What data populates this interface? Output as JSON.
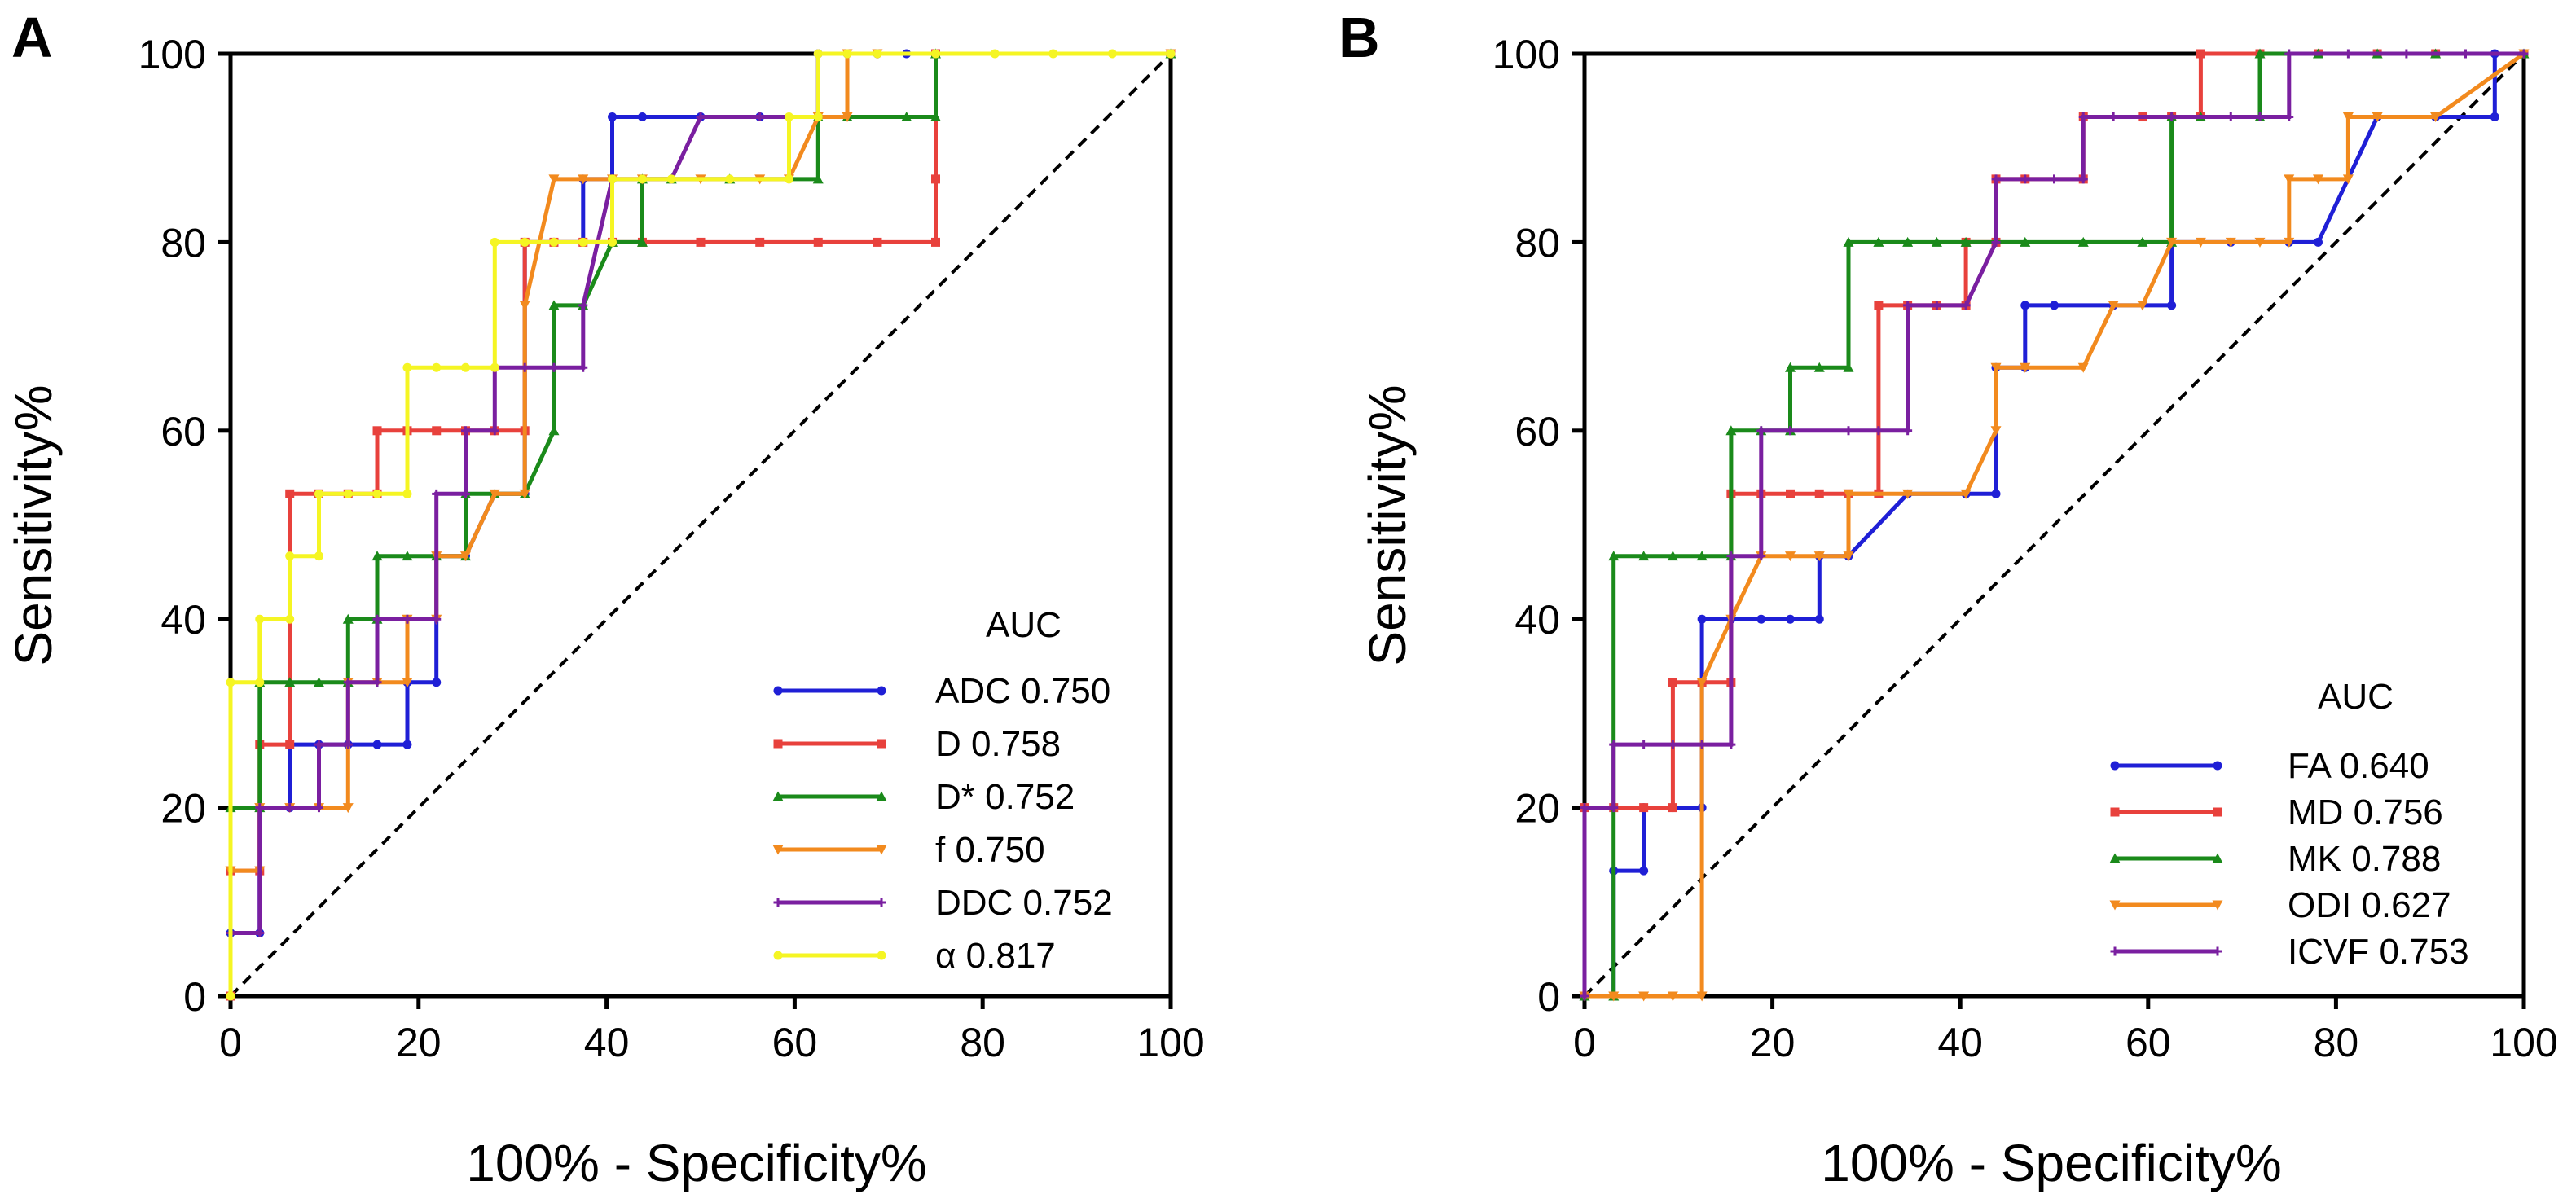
{
  "chart_data": [
    {
      "panel": "A",
      "type": "line",
      "xlabel": "100% - Specificity%",
      "ylabel": "Sensitivity%",
      "xlim": [
        0,
        100
      ],
      "ylim": [
        0,
        100
      ],
      "xticks": [
        0,
        20,
        40,
        60,
        80,
        100
      ],
      "yticks": [
        0,
        20,
        40,
        60,
        80,
        100
      ],
      "reference_line": "diagonal",
      "legend_title": "AUC",
      "legend_position": "bottom-right",
      "series": [
        {
          "name": "ADC",
          "auc": "0.750",
          "color": "#1f1fd6",
          "marker": "circle",
          "x": [
            0,
            0,
            3.1,
            3.1,
            6.3,
            6.3,
            9.4,
            12.5,
            15.6,
            18.8,
            18.8,
            21.9,
            21.9,
            25,
            28.1,
            31.3,
            31.3,
            34.4,
            37.5,
            37.5,
            40.6,
            40.6,
            43.8,
            50,
            56.3,
            62.5,
            62.5,
            65.6,
            68.8,
            71.9,
            75,
            75,
            100
          ],
          "y": [
            0,
            6.7,
            6.7,
            20,
            20,
            26.7,
            26.7,
            26.7,
            26.7,
            26.7,
            33.3,
            33.3,
            46.7,
            46.7,
            53.3,
            53.3,
            80,
            80,
            80,
            86.7,
            86.7,
            93.3,
            93.3,
            93.3,
            93.3,
            93.3,
            100,
            100,
            100,
            100,
            100,
            100,
            100
          ]
        },
        {
          "name": "D",
          "auc": "0.758",
          "color": "#e8413c",
          "marker": "square",
          "x": [
            0,
            0,
            3.1,
            3.1,
            6.3,
            6.3,
            9.4,
            12.5,
            15.6,
            15.6,
            18.8,
            21.9,
            25,
            28.1,
            31.3,
            31.3,
            34.4,
            37.5,
            40.6,
            43.8,
            50,
            56.3,
            62.5,
            68.8,
            75,
            75,
            75,
            100
          ],
          "y": [
            0,
            13.3,
            13.3,
            26.7,
            26.7,
            53.3,
            53.3,
            53.3,
            53.3,
            60,
            60,
            60,
            60,
            60,
            60,
            80,
            80,
            80,
            80,
            80,
            80,
            80,
            80,
            80,
            80,
            86.7,
            100,
            100
          ]
        },
        {
          "name": "D*",
          "auc": "0.752",
          "color": "#1a8a1a",
          "marker": "triangle",
          "x": [
            0,
            3.1,
            3.1,
            6.3,
            9.4,
            12.5,
            12.5,
            15.6,
            15.6,
            18.8,
            21.9,
            25,
            25,
            28.1,
            31.3,
            34.4,
            34.4,
            37.5,
            40.6,
            43.8,
            43.8,
            46.9,
            53.1,
            62.5,
            62.5,
            65.6,
            71.9,
            75,
            75,
            100
          ],
          "y": [
            20,
            20,
            33.3,
            33.3,
            33.3,
            33.3,
            40,
            40,
            46.7,
            46.7,
            46.7,
            46.7,
            53.3,
            53.3,
            53.3,
            60,
            73.3,
            73.3,
            80,
            80,
            86.7,
            86.7,
            86.7,
            86.7,
            93.3,
            93.3,
            93.3,
            93.3,
            100,
            100
          ]
        },
        {
          "name": "f",
          "auc": "0.750",
          "color": "#f28a1e",
          "marker": "triangle-down",
          "x": [
            0,
            3.1,
            3.1,
            6.3,
            9.4,
            12.5,
            12.5,
            15.6,
            18.8,
            18.8,
            21.9,
            21.9,
            25,
            28.1,
            31.3,
            31.3,
            34.4,
            37.5,
            40.6,
            43.8,
            50,
            56.3,
            59.4,
            62.5,
            65.6,
            65.6,
            68.8,
            100
          ],
          "y": [
            13.3,
            13.3,
            20,
            20,
            20,
            20,
            33.3,
            33.3,
            33.3,
            40,
            40,
            46.7,
            46.7,
            53.3,
            53.3,
            73.3,
            86.7,
            86.7,
            86.7,
            86.7,
            86.7,
            86.7,
            86.7,
            93.3,
            93.3,
            100,
            100,
            100
          ]
        },
        {
          "name": "DDC",
          "auc": "0.752",
          "color": "#7a1fa0",
          "marker": "plus",
          "x": [
            0,
            3.1,
            3.1,
            6.3,
            9.4,
            9.4,
            12.5,
            12.5,
            15.6,
            15.6,
            18.8,
            21.9,
            21.9,
            25,
            25,
            28.1,
            28.1,
            31.3,
            34.4,
            37.5,
            37.5,
            40.6,
            43.8,
            46.9,
            50,
            56.3,
            62.5,
            62.5,
            68.8,
            75,
            100
          ],
          "y": [
            6.7,
            6.7,
            20,
            20,
            20,
            26.7,
            26.7,
            33.3,
            33.3,
            40,
            40,
            40,
            53.3,
            53.3,
            60,
            60,
            66.7,
            66.7,
            66.7,
            66.7,
            73.3,
            86.7,
            86.7,
            86.7,
            93.3,
            93.3,
            93.3,
            100,
            100,
            100,
            100
          ]
        },
        {
          "name": "α",
          "auc": "0.817",
          "color": "#f5f523",
          "marker": "circle",
          "x": [
            0,
            0,
            3.1,
            3.1,
            6.3,
            6.3,
            9.4,
            9.4,
            12.5,
            15.6,
            18.8,
            18.8,
            21.9,
            25,
            28.1,
            28.1,
            31.3,
            34.4,
            37.5,
            40.6,
            40.6,
            43.8,
            46.9,
            53.1,
            59.4,
            59.4,
            62.5,
            62.5,
            65.6,
            68.8,
            75,
            81.3,
            87.5,
            93.8,
            100
          ],
          "y": [
            0,
            33.3,
            33.3,
            40,
            40,
            46.7,
            46.7,
            53.3,
            53.3,
            53.3,
            53.3,
            66.7,
            66.7,
            66.7,
            66.7,
            80,
            80,
            80,
            80,
            80,
            86.7,
            86.7,
            86.7,
            86.7,
            86.7,
            93.3,
            93.3,
            100,
            100,
            100,
            100,
            100,
            100,
            100,
            100
          ]
        }
      ]
    },
    {
      "panel": "B",
      "type": "line",
      "xlabel": "100% - Specificity%",
      "ylabel": "Sensitivity%",
      "xlim": [
        0,
        100
      ],
      "ylim": [
        0,
        100
      ],
      "xticks": [
        0,
        20,
        40,
        60,
        80,
        100
      ],
      "yticks": [
        0,
        20,
        40,
        60,
        80,
        100
      ],
      "reference_line": "diagonal",
      "legend_title": "AUC",
      "legend_position": "bottom-right",
      "series": [
        {
          "name": "FA",
          "auc": "0.640",
          "color": "#1f1fd6",
          "marker": "circle",
          "x": [
            0,
            3.1,
            3.1,
            6.3,
            6.3,
            9.4,
            12.5,
            12.5,
            15.6,
            18.8,
            21.9,
            25,
            25,
            28.1,
            34.4,
            40.6,
            43.8,
            43.8,
            46.9,
            46.9,
            50,
            56.3,
            62.5,
            62.5,
            68.8,
            75,
            78.1,
            84.4,
            90.6,
            96.9,
            96.9,
            100
          ],
          "y": [
            0,
            0,
            13.3,
            13.3,
            20,
            20,
            20,
            40,
            40,
            40,
            40,
            40,
            46.7,
            46.7,
            53.3,
            53.3,
            53.3,
            66.7,
            66.7,
            73.3,
            73.3,
            73.3,
            73.3,
            80,
            80,
            80,
            80,
            93.3,
            93.3,
            93.3,
            100,
            100
          ]
        },
        {
          "name": "MD",
          "auc": "0.756",
          "color": "#e8413c",
          "marker": "square",
          "x": [
            0,
            0,
            3.1,
            6.3,
            9.4,
            9.4,
            12.5,
            15.6,
            15.6,
            18.8,
            21.9,
            25,
            28.1,
            31.3,
            31.3,
            34.4,
            37.5,
            40.6,
            40.6,
            43.8,
            43.8,
            46.9,
            53.1,
            53.1,
            59.4,
            62.5,
            65.6,
            65.6,
            71.9,
            78.1,
            84.4,
            90.6,
            100
          ],
          "y": [
            0,
            20,
            20,
            20,
            20,
            33.3,
            33.3,
            33.3,
            53.3,
            53.3,
            53.3,
            53.3,
            53.3,
            53.3,
            73.3,
            73.3,
            73.3,
            73.3,
            80,
            80,
            86.7,
            86.7,
            86.7,
            93.3,
            93.3,
            93.3,
            93.3,
            100,
            100,
            100,
            100,
            100,
            100
          ]
        },
        {
          "name": "MK",
          "auc": "0.788",
          "color": "#1a8a1a",
          "marker": "triangle",
          "x": [
            0,
            3.1,
            3.1,
            6.3,
            9.4,
            12.5,
            15.6,
            15.6,
            18.8,
            21.9,
            21.9,
            25,
            28.1,
            28.1,
            31.3,
            34.4,
            37.5,
            40.6,
            46.9,
            53.1,
            59.4,
            62.5,
            62.5,
            65.6,
            71.9,
            71.9,
            78.1,
            84.4,
            90.6,
            100
          ],
          "y": [
            0,
            0,
            46.7,
            46.7,
            46.7,
            46.7,
            46.7,
            60,
            60,
            60,
            66.7,
            66.7,
            66.7,
            80,
            80,
            80,
            80,
            80,
            80,
            80,
            80,
            80,
            93.3,
            93.3,
            93.3,
            100,
            100,
            100,
            100,
            100
          ]
        },
        {
          "name": "ODI",
          "auc": "0.627",
          "color": "#f28a1e",
          "marker": "triangle-down",
          "x": [
            0,
            3.1,
            6.3,
            9.4,
            12.5,
            12.5,
            15.6,
            18.8,
            21.9,
            25,
            28.1,
            28.1,
            34.4,
            40.6,
            43.8,
            43.8,
            46.9,
            53.1,
            56.3,
            59.4,
            62.5,
            65.6,
            68.8,
            71.9,
            75,
            75,
            78.1,
            81.3,
            81.3,
            84.4,
            90.6,
            100
          ],
          "y": [
            0,
            0,
            0,
            0,
            0,
            33.3,
            40,
            46.7,
            46.7,
            46.7,
            46.7,
            53.3,
            53.3,
            53.3,
            60,
            66.7,
            66.7,
            66.7,
            73.3,
            73.3,
            80,
            80,
            80,
            80,
            80,
            86.7,
            86.7,
            86.7,
            93.3,
            93.3,
            93.3,
            100
          ]
        },
        {
          "name": "ICVF",
          "auc": "0.753",
          "color": "#7a1fa0",
          "marker": "plus",
          "x": [
            0,
            0,
            3.1,
            3.1,
            6.3,
            9.4,
            12.5,
            15.6,
            15.6,
            18.8,
            18.8,
            21.9,
            28.1,
            31.3,
            34.4,
            34.4,
            37.5,
            40.6,
            43.8,
            43.8,
            46.9,
            50,
            53.1,
            53.1,
            56.3,
            62.5,
            68.8,
            71.9,
            75,
            75,
            81.3,
            87.5,
            93.8,
            100
          ],
          "y": [
            0,
            20,
            20,
            26.7,
            26.7,
            26.7,
            26.7,
            26.7,
            46.7,
            46.7,
            60,
            60,
            60,
            60,
            60,
            73.3,
            73.3,
            73.3,
            80,
            86.7,
            86.7,
            86.7,
            86.7,
            93.3,
            93.3,
            93.3,
            93.3,
            93.3,
            93.3,
            100,
            100,
            100,
            100,
            100
          ]
        }
      ]
    }
  ]
}
